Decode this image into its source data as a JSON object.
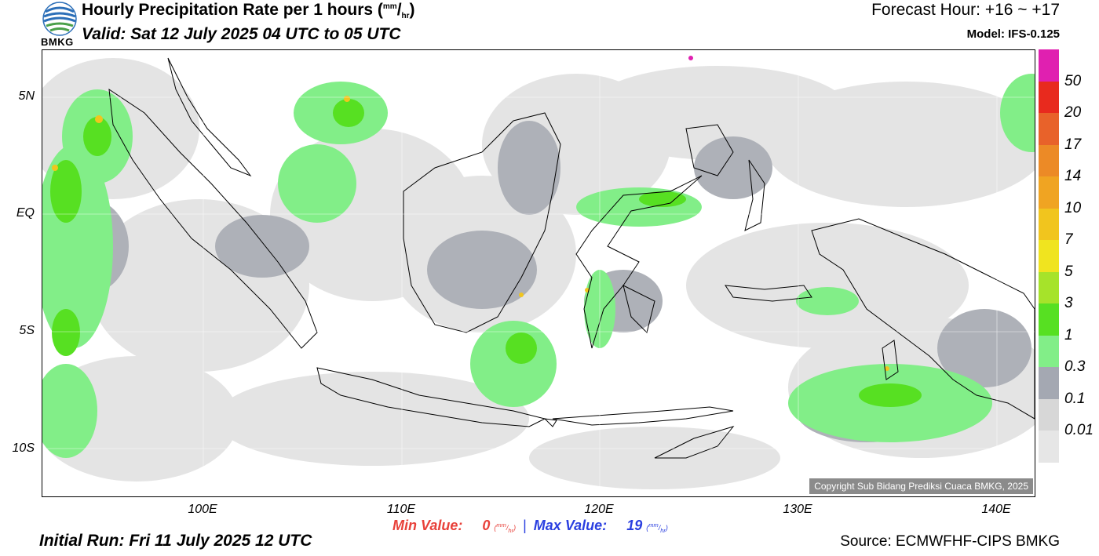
{
  "header": {
    "logo_text": "BMKG",
    "title": "Hourly Precipitation Rate per 1 hours (",
    "title_unit_num": "mm",
    "title_unit_sep": "/",
    "title_unit_den": "hr",
    "title_close": ")",
    "valid": "Valid: Sat 12 July 2025 04 UTC to 05 UTC",
    "forecast": "Forecast Hour: +16 ~ +17",
    "model": "Model: IFS-0.125"
  },
  "axes": {
    "y_labels": [
      "5N",
      "EQ",
      "5S",
      "10S"
    ],
    "x_labels": [
      "100E",
      "110E",
      "120E",
      "130E",
      "140E"
    ]
  },
  "legend": {
    "labels": [
      "50",
      "20",
      "17",
      "14",
      "10",
      "7",
      "5",
      "3",
      "1",
      "0.3",
      "0.1",
      "0.01"
    ],
    "colors": [
      "#e020b0",
      "#e82a1e",
      "#e8622a",
      "#ec8a26",
      "#f0a422",
      "#f1c51e",
      "#f0e41f",
      "#a6e32a",
      "#57e022",
      "#82ee88",
      "#a4a8b2",
      "#d7d7d7",
      "#e6e6e6"
    ]
  },
  "footer": {
    "copyright": "Copyright Sub Bidang Prediksi Cuaca BMKG, 2025",
    "min_label": "Min Value:",
    "min_value": "0",
    "max_label": "Max Value:",
    "max_value": "19",
    "unit_num": "mm",
    "unit_den": "hr",
    "separator": "|",
    "initial_run": "Initial Run: Fri 11 July 2025 12 UTC",
    "source": "Source: ECMWFHF-CIPS BMKG"
  }
}
